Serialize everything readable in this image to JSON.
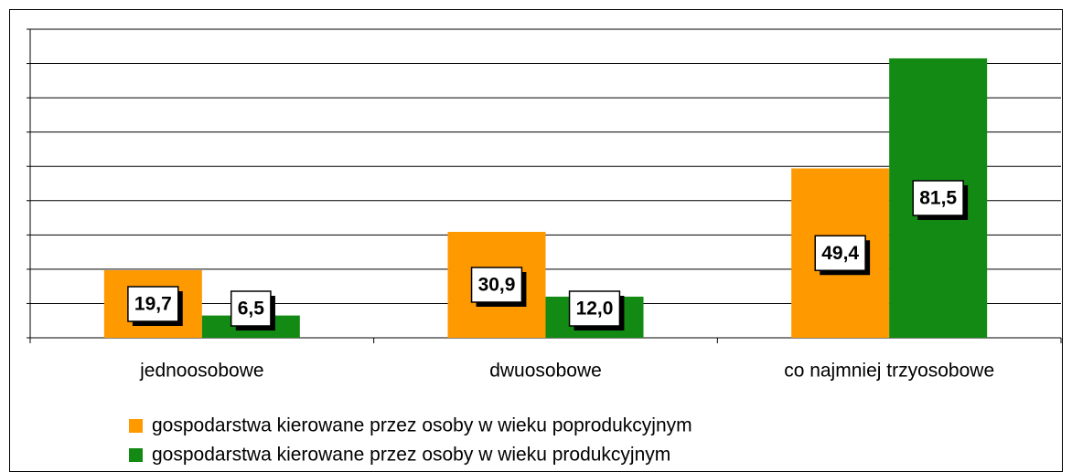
{
  "chart_data": {
    "type": "bar",
    "categories": [
      "jednoosobowe",
      "dwuosobowe",
      "co najmniej trzyosobowe"
    ],
    "series": [
      {
        "name": "gospodarstwa kierowane przez osoby w wieku poprodukcyjnym",
        "color": "#ff9900",
        "values": [
          19.7,
          30.9,
          49.4
        ],
        "value_labels": [
          "19,7",
          "30,9",
          "49,4"
        ]
      },
      {
        "name": "gospodarstwa kierowane przez osoby w wieku produkcyjnym",
        "color": "#138a13",
        "values": [
          6.5,
          12.0,
          81.5
        ],
        "value_labels": [
          "6,5",
          "12,0",
          "81,5"
        ]
      }
    ],
    "ylim": [
      0,
      90
    ],
    "yticks": [
      0,
      10,
      20,
      30,
      40,
      50,
      60,
      70,
      80,
      90
    ],
    "grid": true
  }
}
